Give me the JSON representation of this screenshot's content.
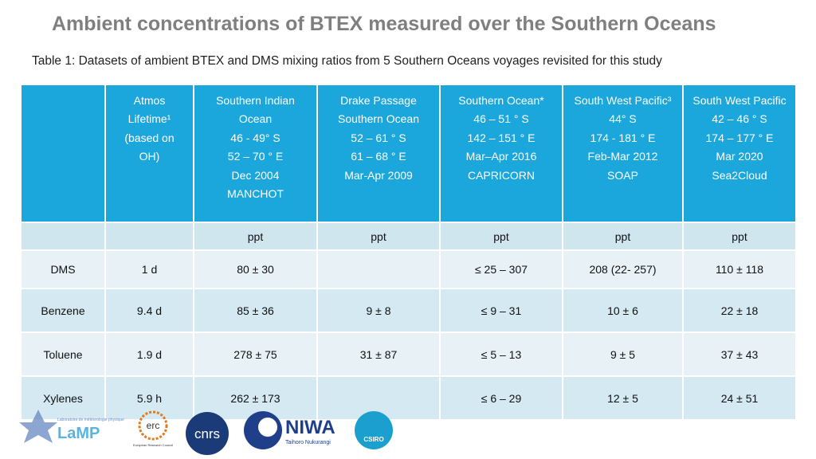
{
  "title": "Ambient concentrations of BTEX measured over the Southern Oceans",
  "caption": "Table 1: Datasets of ambient BTEX and DMS mixing ratios from 5 Southern Oceans voyages revisited for this study",
  "table": {
    "header": [
      [
        "Atmos",
        "Lifetime¹",
        "(based on",
        "OH)"
      ],
      [
        "Southern Indian",
        "Ocean",
        "46 - 49° S",
        "52 – 70 ° E",
        "Dec 2004",
        "MANCHOT"
      ],
      [
        "Drake Passage",
        "Southern Ocean",
        "52 – 61 ° S",
        "61 – 68 ° E",
        "Mar-Apr 2009"
      ],
      [
        "Southern Ocean*",
        "46 – 51 ° S",
        "142 – 151 ° E",
        "Mar–Apr 2016",
        "CAPRICORN"
      ],
      [
        "South West Pacific³",
        "44° S",
        "174 - 181 ° E",
        "Feb-Mar 2012",
        "SOAP"
      ],
      [
        "South West Pacific",
        "42 – 46 ° S",
        "174 – 177 ° E",
        "Mar 2020",
        "Sea2Cloud"
      ]
    ],
    "units": [
      "ppt",
      "ppt",
      "ppt",
      "ppt",
      "ppt"
    ],
    "rows": [
      [
        "DMS",
        "1 d",
        "80 ± 30",
        null,
        "≤ 25 – 307",
        "208 (22- 257)",
        "110 ± 118"
      ],
      [
        "Benzene",
        "9.4 d",
        "85 ± 36",
        "9 ± 8",
        "≤ 9 – 31",
        "10 ± 6",
        "22 ± 18"
      ],
      [
        "Toluene",
        "1.9 d",
        "278 ± 75",
        "31 ± 87",
        "≤ 5 – 13",
        "9 ± 5",
        "37 ± 43"
      ],
      [
        "Xylenes",
        "5.9 h",
        "262 ± 173",
        null,
        "≤ 6 – 29",
        "12 ± 5",
        "24 ± 51"
      ]
    ]
  },
  "logos": {
    "lamp": [
      "Laboratoire de météorologie physique",
      "LaMP"
    ],
    "erc": [
      "erc",
      "European Research Council"
    ],
    "cnrs": "cnrs",
    "niwa": [
      "NIWA",
      "Taihoro Nukurangi"
    ],
    "csiro": "CSIRO"
  }
}
